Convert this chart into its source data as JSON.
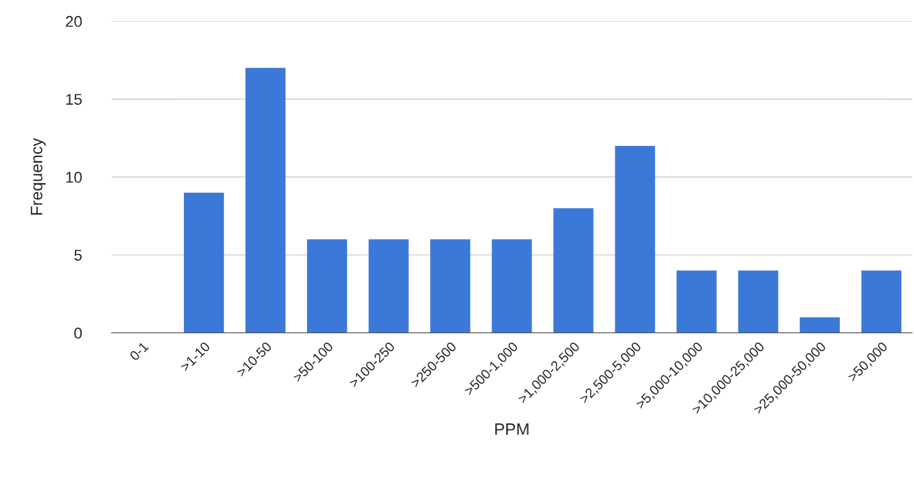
{
  "chart_data": {
    "type": "bar",
    "xlabel": "PPM",
    "ylabel": "Frequency",
    "categories": [
      "0-1",
      ">1-10",
      ">10-50",
      ">50-100",
      ">100-250",
      ">250-500",
      ">500-1,000",
      ">1,000-2,500",
      ">2,500-5,000",
      ">5,000-10,000",
      ">10,000-25,000",
      ">25,000-50,000",
      ">50,000"
    ],
    "values": [
      0,
      9,
      17,
      6,
      6,
      6,
      6,
      8,
      12,
      4,
      4,
      1,
      4
    ],
    "color": "#3c78d8",
    "ylim": [
      0,
      20
    ],
    "yticks": [
      0,
      5,
      10,
      15,
      20
    ],
    "grid": "y",
    "legend": false
  }
}
